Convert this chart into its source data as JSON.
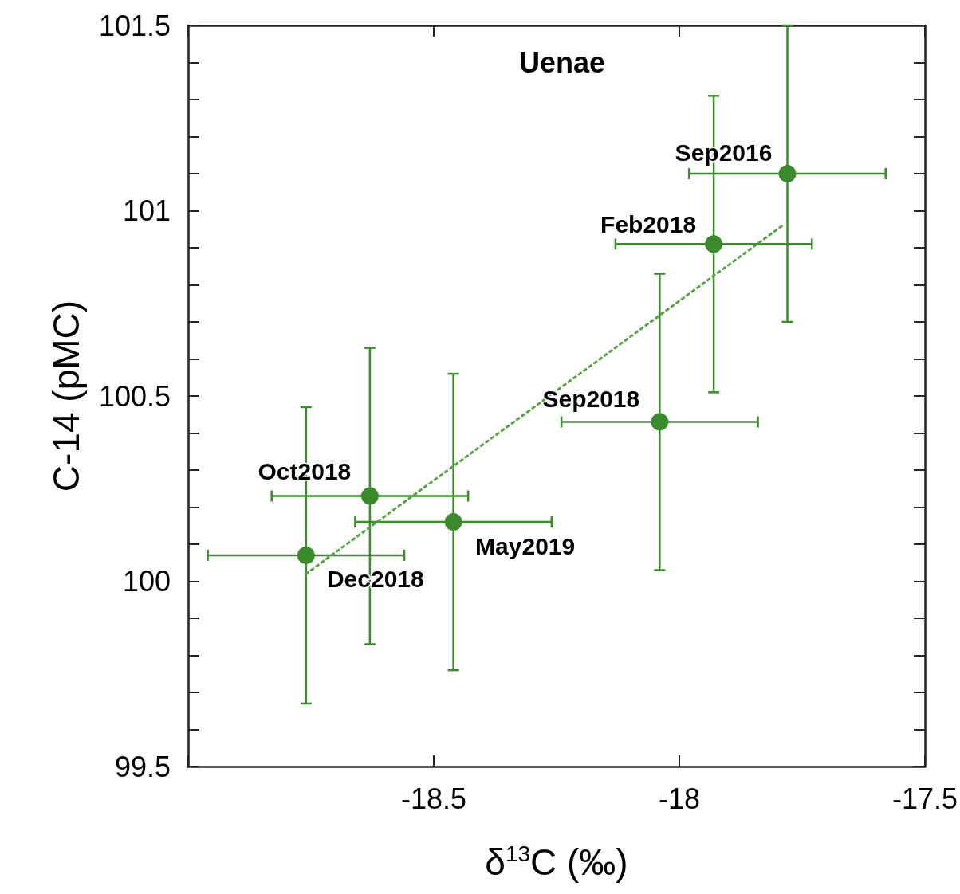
{
  "chart_data": {
    "type": "scatter",
    "title": "Uenae",
    "xlabel": "δ$^{13}$C (‰)",
    "ylabel": "C-14 (pMC)",
    "xlim": [
      -19,
      -17.5
    ],
    "xticks": [
      {
        "value": -19,
        "label": null
      },
      -18.5,
      -18,
      -17.5
    ],
    "ylim": [
      99.5,
      101.5
    ],
    "yticks": [
      99.5,
      100,
      100.5,
      101,
      101.5
    ],
    "grid": false,
    "marker": "circle",
    "series": [
      {
        "color": "#3b8a2c",
        "x": [
          -17.78,
          -17.93,
          -18.04,
          -18.63,
          -18.46,
          -18.76
        ],
        "values": [
          101.1,
          100.91,
          100.43,
          100.23,
          100.16,
          100.07
        ],
        "xerrors": [
          0.2,
          0.2,
          0.2,
          0.2,
          0.2,
          0.2
        ],
        "errors": [
          0.4,
          0.4,
          0.4,
          0.4,
          0.4,
          0.4
        ]
      },
      {
        "type": "line",
        "color": "#5aa24a",
        "line_style": "dotted",
        "marker": "none",
        "x": [
          -18.76,
          -17.79
        ],
        "values": [
          100.02,
          100.96
        ]
      }
    ],
    "annotations": [
      {
        "text": "Sep2016",
        "x": -17.78,
        "y": 101.1
      },
      {
        "text": "Feb2018",
        "x": -17.93,
        "y": 100.91
      },
      {
        "text": "Sep2018",
        "x": -18.04,
        "y": 100.43
      },
      {
        "text": "Oct2018",
        "x": -18.63,
        "y": 100.23
      },
      {
        "text": "May2019",
        "x": -18.46,
        "y": 100.16
      },
      {
        "text": "Dec2018",
        "x": -18.76,
        "y": 100.07
      }
    ]
  }
}
